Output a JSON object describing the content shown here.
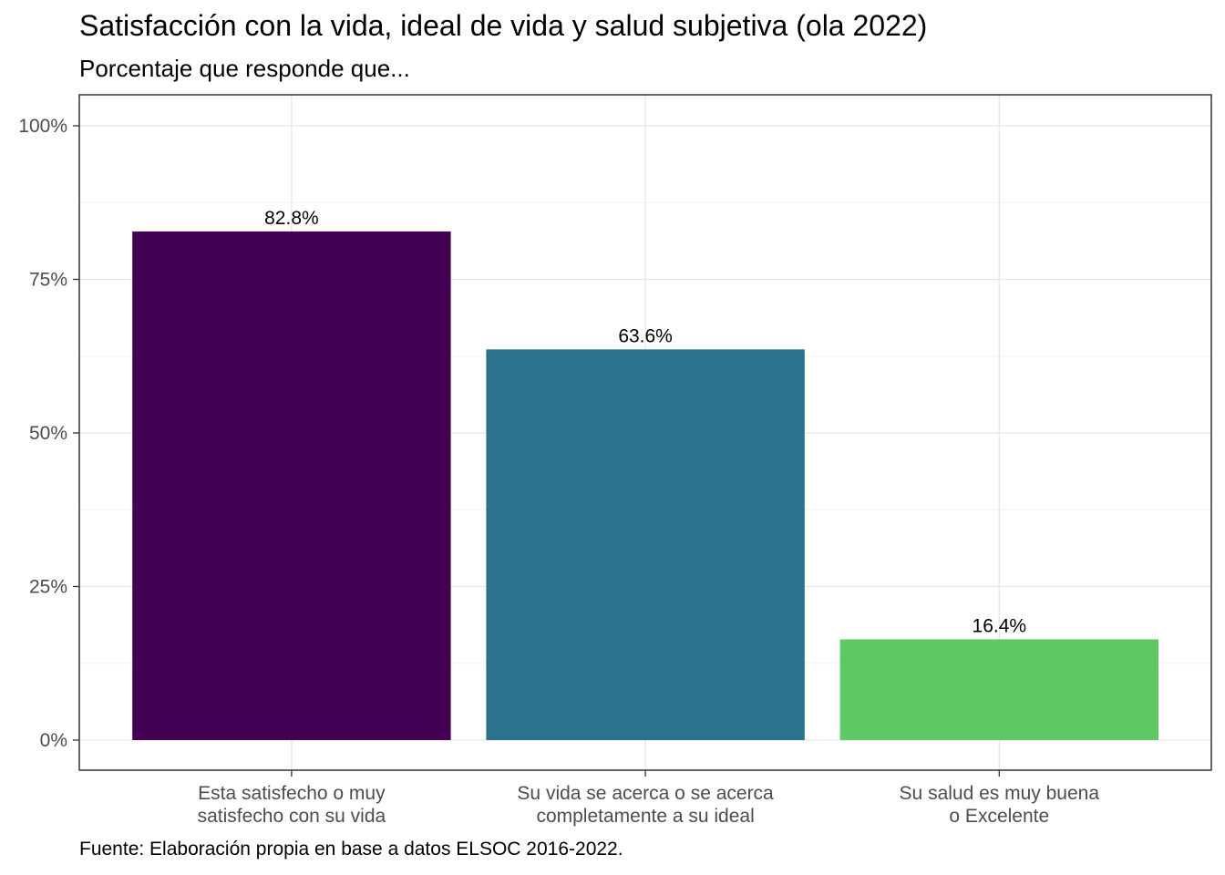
{
  "chart_data": {
    "type": "bar",
    "title": "Satisfacción con la vida, ideal de vida y salud subjetiva (ola 2022)",
    "subtitle": "Porcentaje que responde que...",
    "caption": "Fuente: Elaboración propia en base a datos ELSOC 2016-2022.",
    "categories": [
      [
        "Esta satisfecho o muy",
        "satisfecho con su vida"
      ],
      [
        "Su vida se acerca o se acerca",
        "completamente a su ideal"
      ],
      [
        "Su salud es muy buena",
        "o Excelente"
      ]
    ],
    "values": [
      82.8,
      63.6,
      16.4
    ],
    "data_labels": [
      "82.8%",
      "63.6%",
      "16.4%"
    ],
    "colors": [
      "#440154",
      "#2C728E",
      "#5EC962"
    ],
    "ylim": [
      0,
      100
    ],
    "yticks": [
      0,
      25,
      50,
      75,
      100
    ],
    "ytick_labels": [
      "0%",
      "25%",
      "50%",
      "75%",
      "100%"
    ],
    "xlabel": "",
    "ylabel": "",
    "grid": true,
    "legend": "none"
  }
}
